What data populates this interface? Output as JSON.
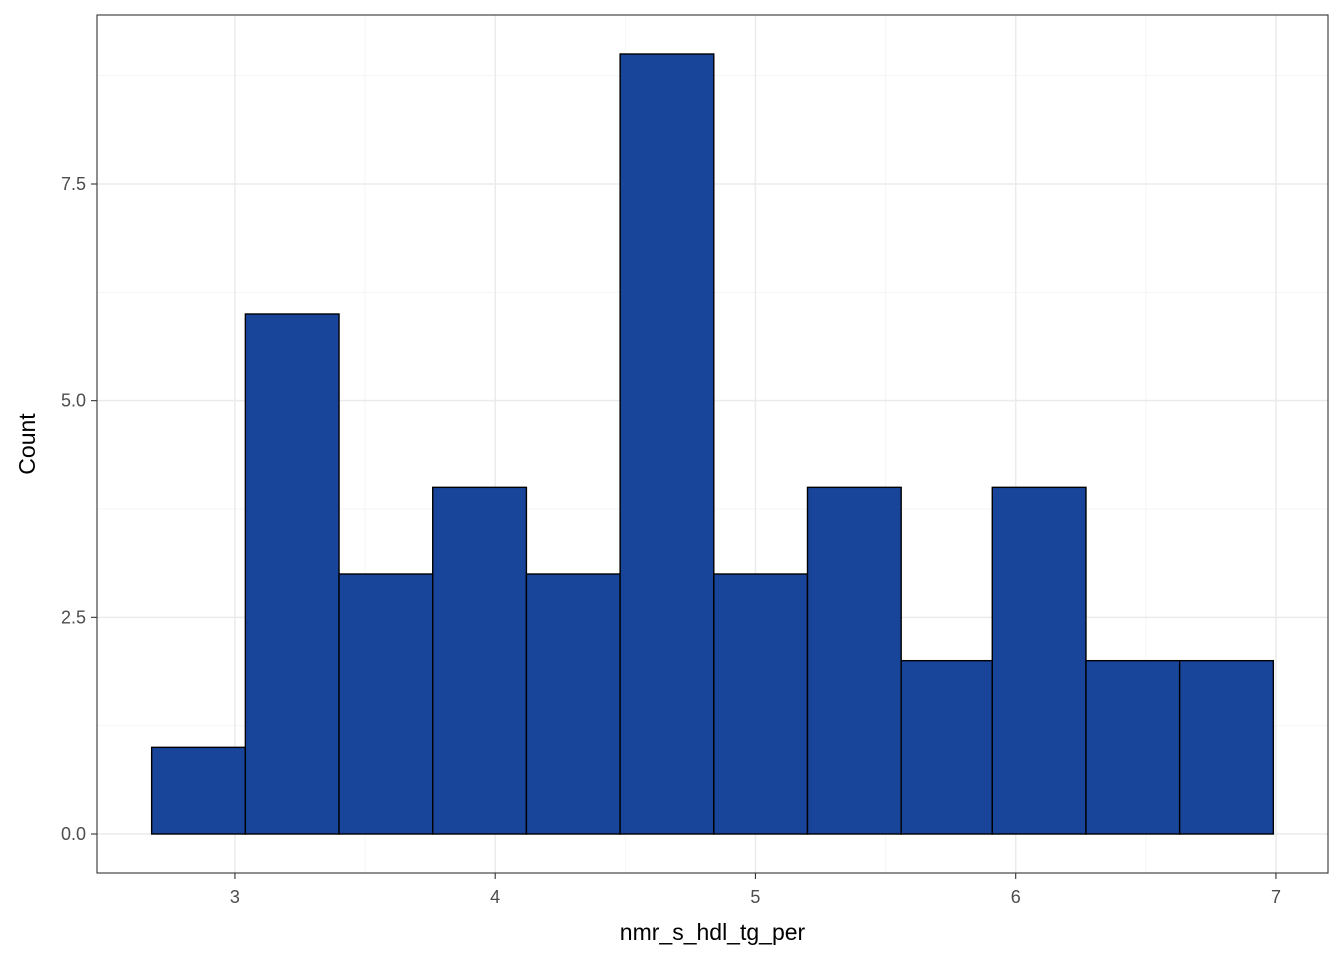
{
  "chart_data": {
    "type": "bar",
    "histogram": true,
    "xlabel": "nmr_s_hdl_tg_per",
    "ylabel": "Count",
    "bins": [
      {
        "x0": 2.68,
        "x1": 3.04,
        "count": 1
      },
      {
        "x0": 3.04,
        "x1": 3.4,
        "count": 6
      },
      {
        "x0": 3.4,
        "x1": 3.76,
        "count": 3
      },
      {
        "x0": 3.76,
        "x1": 4.12,
        "count": 4
      },
      {
        "x0": 4.12,
        "x1": 4.48,
        "count": 3
      },
      {
        "x0": 4.48,
        "x1": 4.84,
        "count": 9
      },
      {
        "x0": 4.84,
        "x1": 5.2,
        "count": 3
      },
      {
        "x0": 5.2,
        "x1": 5.56,
        "count": 4
      },
      {
        "x0": 5.56,
        "x1": 5.91,
        "count": 2
      },
      {
        "x0": 5.91,
        "x1": 6.27,
        "count": 4
      },
      {
        "x0": 6.27,
        "x1": 6.63,
        "count": 2
      },
      {
        "x0": 6.63,
        "x1": 6.99,
        "count": 2
      }
    ],
    "x_ticks": [
      3,
      4,
      5,
      6,
      7
    ],
    "x_tick_labels": [
      "3",
      "4",
      "5",
      "6",
      "7"
    ],
    "y_ticks": [
      0,
      2.5,
      5,
      7.5
    ],
    "y_tick_labels": [
      "0.0",
      "2.5",
      "5.0",
      "7.5"
    ],
    "xlim": [
      2.47,
      7.2
    ],
    "ylim": [
      -0.45,
      9.45
    ],
    "grid": true,
    "legend": "none",
    "colors": {
      "fill": "#18449a",
      "stroke": "#000000",
      "grid_major": "#ebebeb",
      "grid_minor": "#f5f5f5",
      "panel_border": "#333333",
      "tick_text": "#4d4d4d"
    }
  }
}
